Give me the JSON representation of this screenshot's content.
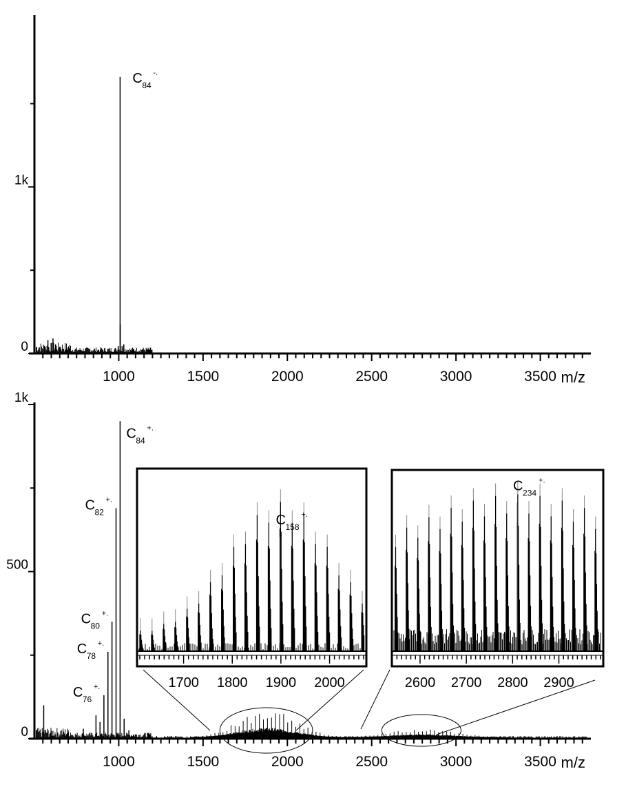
{
  "chart_data": [
    {
      "type": "bar",
      "panel": "top",
      "ylabel": "",
      "xlabel": "m/z",
      "xlim": [
        500,
        3800
      ],
      "ylim": [
        0,
        1750
      ],
      "x_ticks": [
        1000,
        1500,
        2000,
        2500,
        3000,
        3500
      ],
      "x_tick_labels": [
        "1000",
        "1500",
        "2000",
        "2500",
        "3000",
        "3500"
      ],
      "y_tick_labels": [
        {
          "value": 0,
          "label": "0"
        },
        {
          "value": 1000,
          "label": "1k"
        }
      ],
      "y_minor_ticks": [
        500,
        1500
      ],
      "grid": false,
      "peaks": [
        {
          "x": 1008,
          "y": 1660
        },
        {
          "x": 1009,
          "y": 175
        },
        {
          "x": 1020,
          "y": 45
        },
        {
          "x": 997,
          "y": 45
        },
        {
          "x": 1030,
          "y": 55
        },
        {
          "x": 1140,
          "y": 25
        },
        {
          "x": 560,
          "y": 45
        },
        {
          "x": 580,
          "y": 80
        },
        {
          "x": 610,
          "y": 90
        },
        {
          "x": 625,
          "y": 55
        },
        {
          "x": 650,
          "y": 40
        },
        {
          "x": 690,
          "y": 25
        }
      ],
      "annotations": [
        {
          "x": 1008,
          "y": 1660,
          "main": "C",
          "sub": "84",
          "sup": "-."
        }
      ]
    },
    {
      "type": "bar",
      "panel": "bottom",
      "ylabel": "",
      "xlabel": "m/z",
      "xlim": [
        500,
        3800
      ],
      "ylim": [
        0,
        1000
      ],
      "x_ticks": [
        1000,
        1500,
        2000,
        2500,
        3000,
        3500
      ],
      "x_tick_labels": [
        "1000",
        "1500",
        "2000",
        "2500",
        "3000",
        "3500"
      ],
      "y_tick_labels": [
        {
          "value": 0,
          "label": "0"
        },
        {
          "value": 500,
          "label": "500"
        },
        {
          "value": 1000,
          "label": "1k"
        }
      ],
      "y_minor_ticks": [
        250,
        750
      ],
      "grid": false,
      "peaks": [
        {
          "x": 912,
          "y": 130
        },
        {
          "x": 936,
          "y": 260
        },
        {
          "x": 960,
          "y": 350
        },
        {
          "x": 984,
          "y": 690
        },
        {
          "x": 1008,
          "y": 950
        },
        {
          "x": 1032,
          "y": 60
        },
        {
          "x": 865,
          "y": 70
        },
        {
          "x": 889,
          "y": 50
        },
        {
          "x": 555,
          "y": 100
        },
        {
          "x": 700,
          "y": 25
        },
        {
          "x": 790,
          "y": 30
        },
        {
          "x": 1060,
          "y": 25
        }
      ],
      "annotations": [
        {
          "x": 1008,
          "y": 950,
          "main": "C",
          "sub": "84",
          "sup": "+."
        },
        {
          "x": 984,
          "y": 690,
          "main": "C",
          "sub": "82",
          "sup": "+."
        },
        {
          "x": 960,
          "y": 350,
          "main": "C",
          "sub": "80",
          "sup": "+."
        },
        {
          "x": 936,
          "y": 260,
          "main": "C",
          "sub": "78",
          "sup": "+."
        },
        {
          "x": 912,
          "y": 130,
          "main": "C",
          "sub": "76",
          "sup": "+."
        }
      ],
      "highlight_regions": [
        {
          "xmin": 1600,
          "xmax": 2150
        },
        {
          "xmin": 2560,
          "xmax": 3030
        }
      ]
    },
    {
      "type": "bar",
      "panel": "inset-1",
      "xlim": [
        1610,
        2070
      ],
      "ylim": [
        0,
        100
      ],
      "x_ticks": [
        1700,
        1800,
        1900,
        2000
      ],
      "x_tick_labels": [
        "1700",
        "1800",
        "1900",
        "2000"
      ],
      "peak_spacing": 24,
      "envelope_center": 1898,
      "annotations": [
        {
          "x": 1898,
          "y": 62,
          "main": "C",
          "sub": "158",
          "sup": "+."
        }
      ]
    },
    {
      "type": "bar",
      "panel": "inset-2",
      "xlim": [
        2545,
        2990
      ],
      "ylim": [
        0,
        100
      ],
      "x_ticks": [
        2600,
        2700,
        2800,
        2900
      ],
      "x_tick_labels": [
        "2600",
        "2700",
        "2800",
        "2900"
      ],
      "peak_spacing": 24,
      "envelope_center": 2810,
      "annotations": [
        {
          "x": 2810,
          "y": 82,
          "main": "C",
          "sub": "234",
          "sup": "+."
        }
      ]
    }
  ]
}
